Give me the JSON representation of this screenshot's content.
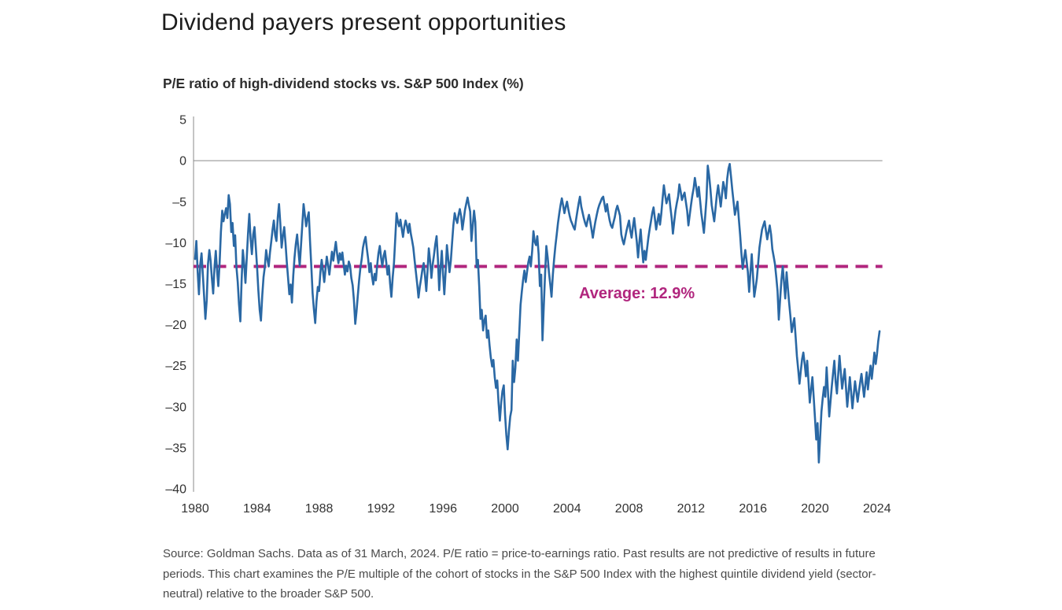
{
  "title": "Dividend payers present opportunities",
  "subtitle": "P/E ratio of high-dividend stocks vs. S&P 500 Index (%)",
  "source_note": "Source: Goldman Sachs. Data as of 31 March, 2024. P/E ratio = price-to-earnings ratio. Past results are not predictive of results in future periods. This chart examines the P/E multiple of the cohort of stocks in the S&P 500 Index with the highest quintile dividend yield (sector-neutral) relative to the broader S&P 500.",
  "colors": {
    "line": "#2a68a4",
    "average": "#b1267e",
    "axis": "#8a8a8a",
    "tick_text": "#333333"
  },
  "chart_data": {
    "type": "line",
    "title": "P/E ratio of high-dividend stocks vs. S&P 500 Index (%)",
    "xlabel": "",
    "ylabel": "",
    "grid": "zero-line-only",
    "legend": "none",
    "xlim": [
      1979.9,
      2024.35
    ],
    "ylim": [
      -40,
      5
    ],
    "x_ticks": [
      1980,
      1984,
      1988,
      1992,
      1996,
      2000,
      2004,
      2008,
      2012,
      2016,
      2020,
      2024
    ],
    "x_tick_labels": [
      "1980",
      "1984",
      "1988",
      "1992",
      "1996",
      "2000",
      "2004",
      "2008",
      "2012",
      "2016",
      "2020",
      "2024"
    ],
    "y_ticks": [
      5,
      0,
      -5,
      -10,
      -15,
      -20,
      -25,
      -30,
      -35,
      -40
    ],
    "y_tick_labels": [
      "5",
      "0",
      "–5",
      "–10",
      "–15",
      "–20",
      "–25",
      "–30",
      "–35",
      "–40"
    ],
    "average": {
      "label": "Average: 12.9%",
      "value": -12.9,
      "color": "#b1267e",
      "style": "dashed"
    },
    "series": [
      {
        "name": "P/E ratio of high-dividend stocks relative to S&P 500 Index (%)",
        "color": "#2a68a4",
        "start_year": 1980,
        "interval_months": 1,
        "values": [
          -12.0,
          -9.8,
          -13.6,
          -16.3,
          -12.6,
          -11.3,
          -13.8,
          -16.6,
          -19.3,
          -17.0,
          -12.6,
          -10.9,
          -12.2,
          -14.3,
          -16.2,
          -13.1,
          -11.0,
          -13.4,
          -15.3,
          -12.4,
          -8.7,
          -6.1,
          -7.4,
          -6.5,
          -5.8,
          -7.0,
          -4.2,
          -5.3,
          -8.7,
          -7.6,
          -10.4,
          -9.1,
          -12.9,
          -14.8,
          -17.5,
          -19.6,
          -14.7,
          -10.9,
          -12.6,
          -14.9,
          -11.8,
          -8.9,
          -6.5,
          -9.6,
          -11.4,
          -9.0,
          -8.1,
          -10.6,
          -13.0,
          -15.8,
          -18.2,
          -19.5,
          -16.4,
          -14.2,
          -13.0,
          -10.9,
          -12.0,
          -12.9,
          -11.2,
          -9.8,
          -8.4,
          -7.3,
          -9.1,
          -9.8,
          -6.9,
          -5.3,
          -7.6,
          -10.6,
          -9.2,
          -8.1,
          -10.0,
          -12.4,
          -14.3,
          -16.3,
          -15.1,
          -17.3,
          -14.0,
          -11.8,
          -10.2,
          -9.0,
          -10.9,
          -12.8,
          -10.4,
          -7.8,
          -5.3,
          -6.6,
          -8.0,
          -7.0,
          -6.3,
          -9.8,
          -13.0,
          -16.2,
          -18.1,
          -19.8,
          -17.2,
          -15.4,
          -15.9,
          -13.7,
          -12.1,
          -13.4,
          -14.8,
          -13.2,
          -11.7,
          -12.8,
          -13.9,
          -12.4,
          -11.1,
          -12.2,
          -11.0,
          -9.9,
          -11.4,
          -12.5,
          -11.3,
          -12.1,
          -11.2,
          -12.6,
          -13.9,
          -12.8,
          -13.5,
          -12.3,
          -12.8,
          -14.3,
          -15.2,
          -17.0,
          -19.9,
          -18.4,
          -16.4,
          -14.6,
          -13.1,
          -12.0,
          -10.6,
          -9.8,
          -9.3,
          -10.7,
          -12.0,
          -13.6,
          -12.5,
          -14.1,
          -15.1,
          -13.8,
          -14.6,
          -12.7,
          -11.3,
          -10.4,
          -11.8,
          -12.9,
          -11.6,
          -11.0,
          -12.4,
          -13.9,
          -12.8,
          -15.0,
          -16.6,
          -14.2,
          -12.5,
          -9.4,
          -6.4,
          -7.4,
          -8.0,
          -7.2,
          -8.3,
          -9.3,
          -8.1,
          -7.3,
          -7.9,
          -8.8,
          -7.7,
          -8.9,
          -9.7,
          -10.6,
          -12.2,
          -13.6,
          -15.1,
          -16.7,
          -15.4,
          -14.4,
          -13.3,
          -12.5,
          -14.0,
          -15.9,
          -13.4,
          -10.7,
          -12.3,
          -14.3,
          -12.6,
          -11.5,
          -10.2,
          -9.2,
          -11.9,
          -15.8,
          -13.2,
          -11.0,
          -13.8,
          -16.3,
          -13.5,
          -10.3,
          -12.0,
          -13.6,
          -12.2,
          -10.0,
          -7.9,
          -6.4,
          -7.1,
          -7.6,
          -6.6,
          -5.9,
          -6.8,
          -8.4,
          -7.2,
          -6.0,
          -5.2,
          -4.5,
          -5.4,
          -6.2,
          -9.8,
          -7.9,
          -6.1,
          -7.5,
          -13.0,
          -12.1,
          -15.4,
          -19.3,
          -18.2,
          -20.7,
          -19.5,
          -18.9,
          -21.6,
          -20.7,
          -22.5,
          -24.0,
          -25.1,
          -24.3,
          -26.4,
          -27.7,
          -26.8,
          -29.6,
          -31.7,
          -29.5,
          -28.1,
          -27.4,
          -30.9,
          -33.4,
          -35.2,
          -33.0,
          -31.2,
          -30.4,
          -24.4,
          -27.0,
          -25.3,
          -21.8,
          -24.4,
          -20.9,
          -17.6,
          -16.0,
          -14.5,
          -13.4,
          -14.8,
          -13.6,
          -12.4,
          -11.7,
          -12.9,
          -11.0,
          -8.6,
          -9.9,
          -10.3,
          -9.2,
          -11.4,
          -15.3,
          -13.9,
          -21.9,
          -17.6,
          -13.8,
          -10.4,
          -11.8,
          -13.6,
          -15.1,
          -16.6,
          -14.0,
          -12.0,
          -10.4,
          -9.0,
          -7.6,
          -6.4,
          -5.4,
          -4.6,
          -5.5,
          -6.4,
          -5.6,
          -5.0,
          -5.9,
          -6.7,
          -7.3,
          -7.7,
          -8.1,
          -8.4,
          -7.2,
          -6.2,
          -5.2,
          -4.4,
          -5.6,
          -6.3,
          -7.0,
          -7.6,
          -8.0,
          -7.2,
          -6.6,
          -7.4,
          -8.4,
          -9.4,
          -8.3,
          -7.4,
          -6.6,
          -5.9,
          -5.4,
          -5.0,
          -4.6,
          -4.4,
          -5.3,
          -6.2,
          -5.3,
          -6.4,
          -7.3,
          -7.9,
          -8.2,
          -7.5,
          -6.9,
          -6.0,
          -5.5,
          -6.1,
          -6.7,
          -9.0,
          -9.7,
          -10.2,
          -9.4,
          -8.6,
          -7.9,
          -7.3,
          -8.5,
          -9.4,
          -8.1,
          -7.0,
          -8.4,
          -9.8,
          -11.8,
          -10.0,
          -8.4,
          -10.5,
          -12.4,
          -11.0,
          -12.1,
          -10.7,
          -9.4,
          -8.3,
          -7.4,
          -6.4,
          -5.7,
          -7.0,
          -8.4,
          -7.4,
          -6.5,
          -7.8,
          -6.5,
          -4.6,
          -3.0,
          -4.2,
          -5.2,
          -4.6,
          -4.1,
          -5.6,
          -7.0,
          -8.9,
          -7.4,
          -6.1,
          -5.2,
          -4.4,
          -2.9,
          -3.8,
          -4.8,
          -4.3,
          -3.9,
          -5.0,
          -6.1,
          -7.9,
          -6.6,
          -5.4,
          -4.3,
          -3.4,
          -2.1,
          -3.2,
          -4.4,
          -3.2,
          -4.8,
          -6.4,
          -7.6,
          -8.8,
          -6.7,
          -4.6,
          -0.6,
          -1.8,
          -3.4,
          -5.4,
          -6.4,
          -7.4,
          -5.8,
          -4.2,
          -3.0,
          -4.3,
          -5.6,
          -4.1,
          -2.6,
          -3.4,
          -4.6,
          -2.2,
          -1.0,
          -0.4,
          -2.0,
          -3.6,
          -5.1,
          -6.6,
          -5.8,
          -5.0,
          -7.0,
          -9.0,
          -11.2,
          -13.2,
          -12.0,
          -10.9,
          -12.2,
          -13.5,
          -16.0,
          -13.7,
          -11.4,
          -14.0,
          -16.6,
          -15.5,
          -14.4,
          -12.5,
          -10.6,
          -9.5,
          -8.4,
          -7.9,
          -7.4,
          -8.5,
          -9.6,
          -8.7,
          -7.9,
          -9.0,
          -10.8,
          -11.7,
          -12.6,
          -14.2,
          -15.9,
          -19.4,
          -16.9,
          -14.6,
          -12.9,
          -14.8,
          -16.8,
          -13.6,
          -15.5,
          -17.4,
          -19.0,
          -20.9,
          -20.0,
          -19.2,
          -21.5,
          -23.8,
          -25.5,
          -27.2,
          -25.7,
          -24.2,
          -23.4,
          -24.8,
          -26.3,
          -24.4,
          -27.0,
          -29.5,
          -27.9,
          -26.4,
          -28.9,
          -31.4,
          -34.0,
          -32.0,
          -36.8,
          -33.6,
          -30.6,
          -28.9,
          -27.6,
          -28.8,
          -25.2,
          -28.0,
          -31.2,
          -29.4,
          -27.6,
          -25.9,
          -24.4,
          -27.0,
          -28.4,
          -26.1,
          -23.8,
          -25.8,
          -27.8,
          -26.6,
          -25.4,
          -27.7,
          -30.0,
          -28.2,
          -26.4,
          -28.3,
          -30.2,
          -28.5,
          -26.9,
          -28.1,
          -29.4,
          -28.2,
          -27.0,
          -26.0,
          -27.4,
          -28.8,
          -27.3,
          -25.8,
          -27.9,
          -26.4,
          -25.0,
          -26.6,
          -25.0,
          -23.4,
          -24.8,
          -23.6,
          -22.0,
          -20.8
        ]
      }
    ]
  }
}
